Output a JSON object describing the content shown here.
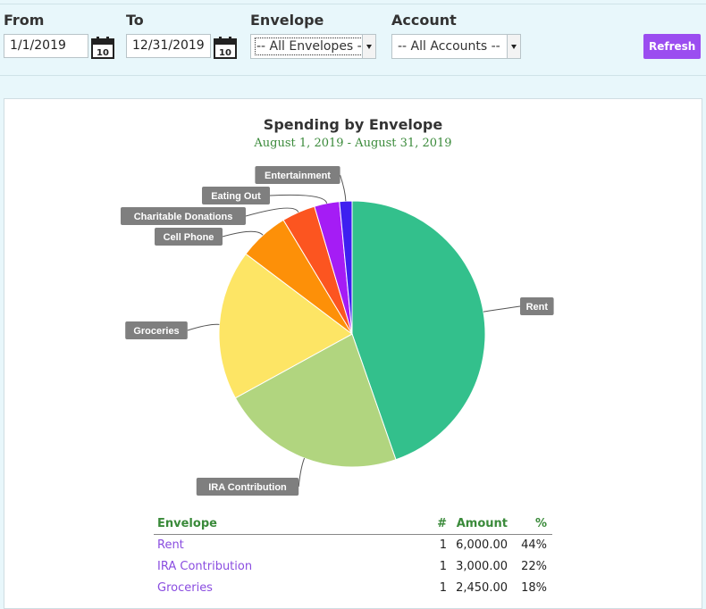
{
  "filters": {
    "from_label": "From",
    "from_value": "1/1/2019",
    "to_label": "To",
    "to_value": "12/31/2019",
    "envelope_label": "Envelope",
    "envelope_selected": "-- All Envelopes --",
    "account_label": "Account",
    "account_selected": "-- All Accounts --",
    "calendar_icon_text": "10",
    "refresh_label": "Refresh"
  },
  "chart": {
    "title": "Spending by Envelope",
    "subtitle": "August 1, 2019 - August 31, 2019"
  },
  "chart_data": {
    "type": "pie",
    "title": "Spending by Envelope",
    "subtitle": "August 1, 2019 - August 31, 2019",
    "slices": [
      {
        "label": "Rent",
        "value": 44,
        "color": "#33c08c"
      },
      {
        "label": "IRA Contribution",
        "value": 22,
        "color": "#b1d57f"
      },
      {
        "label": "Groceries",
        "value": 18,
        "color": "#fde565"
      },
      {
        "label": "Cell Phone",
        "value": 6,
        "color": "#fd9008"
      },
      {
        "label": "Charitable Donations",
        "value": 4,
        "color": "#fc5520"
      },
      {
        "label": "Eating Out",
        "value": 3,
        "color": "#a51cf5"
      },
      {
        "label": "Entertainment",
        "value": 1.5,
        "color": "#3e1ff0"
      }
    ]
  },
  "table": {
    "headers": {
      "envelope": "Envelope",
      "count": "#",
      "amount": "Amount",
      "percent": "%"
    },
    "rows": [
      {
        "envelope": "Rent",
        "count": "1",
        "amount": "6,000.00",
        "percent": "44%"
      },
      {
        "envelope": "IRA Contribution",
        "count": "1",
        "amount": "3,000.00",
        "percent": "22%"
      },
      {
        "envelope": "Groceries",
        "count": "1",
        "amount": "2,450.00",
        "percent": "18%"
      }
    ]
  },
  "colors": {
    "accent": "#9b4df0",
    "header_green": "#3a8a3a",
    "link_purple": "#8a4de0",
    "background": "#e8f7fb"
  }
}
